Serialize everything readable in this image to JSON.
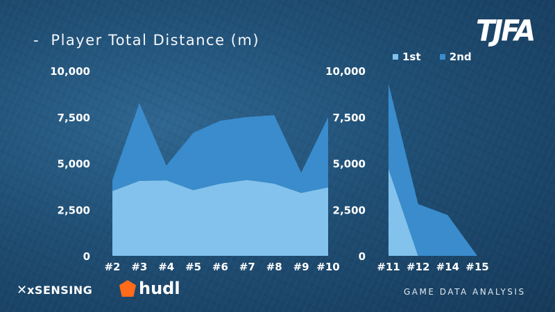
{
  "header": {
    "title": "-  Player Total Distance (m)",
    "brand": "TJFA"
  },
  "footer": {
    "tagline": "GAME DATA ANALYSIS",
    "sponsor1": "xSENSING",
    "sponsor2": "hudl"
  },
  "colors": {
    "first_half": "#82c2ec",
    "second_half": "#3a8ccc"
  },
  "chart_data": [
    {
      "type": "area",
      "stacked": true,
      "categories": [
        "#2",
        "#3",
        "#4",
        "#5",
        "#6",
        "#7",
        "#8",
        "#9",
        "#10"
      ],
      "series": [
        {
          "name": "1st",
          "values": [
            3500,
            4050,
            4080,
            3550,
            3900,
            4100,
            3900,
            3400,
            3700
          ]
        },
        {
          "name": "2nd",
          "values": [
            600,
            4200,
            800,
            3100,
            3400,
            3400,
            3700,
            1100,
            3800
          ]
        }
      ],
      "yticks": [
        "10,000",
        "7,500",
        "5,000",
        "2,500",
        "0"
      ],
      "ylim": [
        0,
        10000
      ],
      "legend": "top-right"
    },
    {
      "type": "area",
      "stacked": true,
      "categories": [
        "#11",
        "#12",
        "#14",
        "#15"
      ],
      "series": [
        {
          "name": "1st",
          "values": [
            4700,
            0,
            0,
            0
          ]
        },
        {
          "name": "2nd",
          "values": [
            4600,
            2800,
            2200,
            0
          ]
        }
      ],
      "yticks": [
        "10,000",
        "7,500",
        "5,000",
        "2,500",
        "0"
      ],
      "ylim": [
        0,
        10000
      ],
      "legend": "top-right"
    }
  ]
}
